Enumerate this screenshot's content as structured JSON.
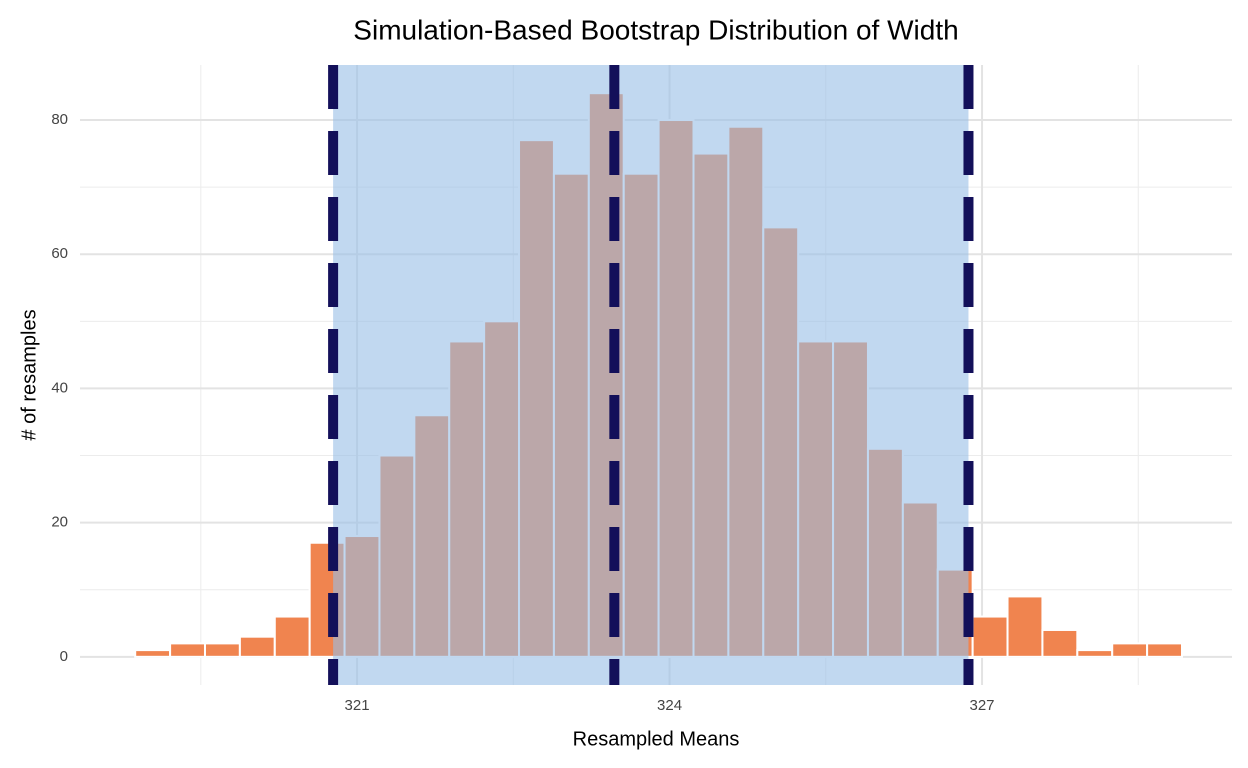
{
  "chart_data": {
    "type": "histogram",
    "title": "Simulation-Based Bootstrap Distribution of Width",
    "x_label": "Resampled Means",
    "y_label": "# of resamples",
    "bins": [
      318.87,
      319.205,
      319.54,
      319.875,
      320.21,
      320.545,
      320.88,
      321.215,
      321.55,
      321.885,
      322.22,
      322.555,
      322.89,
      323.225,
      323.56,
      323.895,
      324.23,
      324.565,
      324.9,
      325.235,
      325.57,
      325.905,
      326.24,
      326.575,
      326.91,
      327.245,
      327.58,
      327.915,
      328.25,
      328.585,
      328.92
    ],
    "values": [
      1,
      2,
      2,
      3,
      6,
      17,
      18,
      30,
      36,
      47,
      50,
      77,
      72,
      84,
      72,
      80,
      75,
      79,
      64,
      47,
      47,
      31,
      23,
      13,
      6,
      9,
      4,
      1,
      2,
      2
    ],
    "color": "#f0844f",
    "ci": [
      320.77,
      326.87
    ],
    "ci_color": "#98bee6",
    "point_estimate": 323.47,
    "line_color": "#13105a",
    "xlim": [
      318.34,
      329.4
    ],
    "ylim": [
      -4.2,
      88.2
    ],
    "xticks": [
      321,
      324,
      327
    ],
    "yticks": [
      0,
      20,
      40,
      60,
      80
    ],
    "x_minor_ticks": [
      319.5,
      322.5,
      325.5,
      328.5
    ],
    "y_minor_ticks": [
      10,
      30,
      50,
      70
    ],
    "grid": true
  }
}
